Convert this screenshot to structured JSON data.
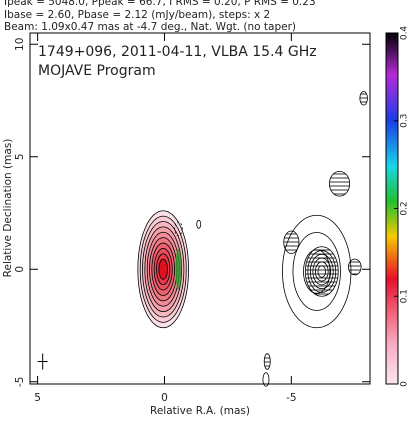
{
  "chart_data": {
    "type": "contour",
    "header": [
      "Ipeak = 5048.0, Ppeak = 66.7, I RMS = 0.20, P RMS = 0.23",
      "Ibase = 2.60, Pbase = 2.12 (mJy/beam), steps: x 2",
      "Beam: 1.09x0.47 mas at -4.7 deg., Nat. Wgt. (no taper)"
    ],
    "title": "1749+096, 2011-04-11, VLBA 15.4 GHz",
    "subtitle": "MOJAVE Program",
    "x_label": "Relative R.A. (mas)",
    "y_label": "Relative Declination (mas)",
    "xlim": [
      5.3,
      -8.1
    ],
    "ylim": [
      -5.1,
      10.5
    ],
    "xticks": [
      5,
      0,
      -5
    ],
    "yticks": [
      -5,
      0,
      5,
      10
    ],
    "colorbar": {
      "lim": [
        0,
        0.4
      ],
      "ticks": [
        0,
        0.1,
        0.2,
        0.3,
        0.4
      ]
    },
    "components": [
      {
        "x": 0.05,
        "y": 0.0,
        "rx": 1.0,
        "ry": 2.6,
        "contours": 10,
        "style": "filled"
      },
      {
        "x": -0.55,
        "y": 1.8,
        "rx": 0.15,
        "ry": 0.3,
        "contours": 1,
        "style": "dashed"
      },
      {
        "x": -1.35,
        "y": 2.0,
        "rx": 0.08,
        "ry": 0.18,
        "contours": 1,
        "style": "line"
      },
      {
        "x": -6.0,
        "y": -0.1,
        "rx": 1.35,
        "ry": 2.5,
        "contours": 3,
        "style": "line"
      },
      {
        "x": -6.2,
        "y": -0.1,
        "rx": 0.65,
        "ry": 1.1,
        "contours": 6,
        "style": "hatched"
      },
      {
        "x": -5.0,
        "y": 1.2,
        "rx": 0.3,
        "ry": 0.5,
        "contours": 1,
        "style": "hatched"
      },
      {
        "x": -6.9,
        "y": 3.8,
        "rx": 0.4,
        "ry": 0.55,
        "contours": 1,
        "style": "hatched"
      },
      {
        "x": -7.5,
        "y": 0.1,
        "rx": 0.25,
        "ry": 0.35,
        "contours": 1,
        "style": "hatched"
      },
      {
        "x": -7.85,
        "y": 7.6,
        "rx": 0.15,
        "ry": 0.3,
        "contours": 1,
        "style": "hatched"
      },
      {
        "x": -4.05,
        "y": -4.1,
        "rx": 0.12,
        "ry": 0.35,
        "contours": 1,
        "style": "hatched"
      },
      {
        "x": -4.0,
        "y": -4.9,
        "rx": 0.12,
        "ry": 0.3,
        "contours": 1,
        "style": "line"
      }
    ],
    "marker": {
      "x": 4.8,
      "y": -4.1
    }
  }
}
